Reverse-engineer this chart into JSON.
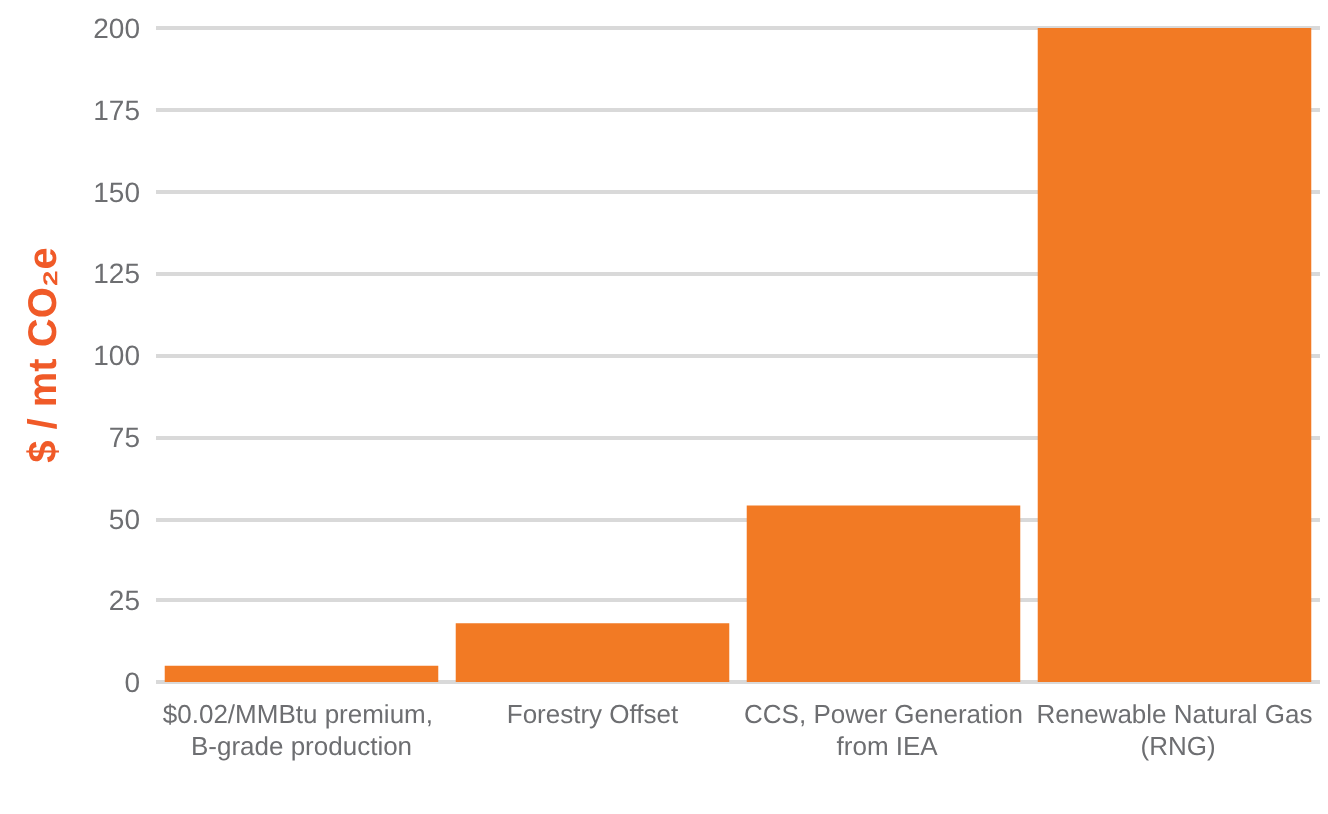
{
  "chart_data": {
    "type": "bar",
    "ylabel": "$ / mt CO₂e",
    "categories": [
      "$0.02/MMBtu premium, B-grade production",
      "Forestry Offset",
      "CCS, Power Generation from IEA",
      "Renewable Natural Gas (RNG)"
    ],
    "values": [
      5,
      18,
      54,
      200
    ],
    "color": "#f27a24",
    "ylim": [
      0,
      200
    ],
    "yticks": [
      0,
      25,
      50,
      75,
      100,
      125,
      150,
      175,
      200
    ],
    "grid": "y"
  }
}
